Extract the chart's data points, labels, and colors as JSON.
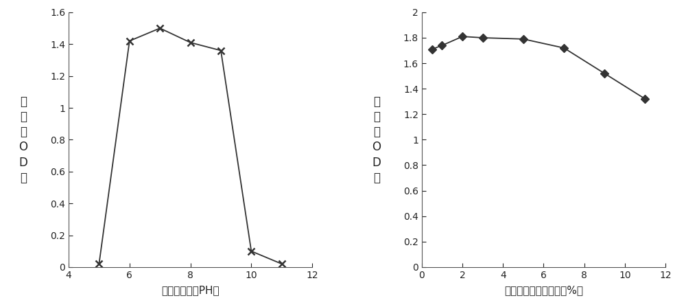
{
  "chart1": {
    "x": [
      5,
      6,
      7,
      8,
      9,
      10,
      11
    ],
    "y": [
      0.02,
      1.42,
      1.5,
      1.41,
      1.36,
      0.1,
      0.02
    ],
    "xlim": [
      4,
      12
    ],
    "ylim": [
      0,
      1.6
    ],
    "xticks": [
      4,
      6,
      8,
      10,
      12
    ],
    "yticks": [
      0,
      0.2,
      0.4,
      0.6,
      0.8,
      1.0,
      1.2,
      1.4,
      1.6
    ],
    "xlabel": "培养液的初始PH值",
    "ylabel_chars": [
      "菌",
      "液",
      "的",
      "O",
      "D",
      "值"
    ],
    "color": "#333333",
    "marker": "x",
    "markersize": 7,
    "linewidth": 1.3,
    "markeredgewidth": 1.8
  },
  "chart2": {
    "x": [
      0.5,
      1,
      2,
      3,
      5,
      7,
      9,
      11
    ],
    "y": [
      1.71,
      1.74,
      1.81,
      1.8,
      1.79,
      1.72,
      1.52,
      1.32
    ],
    "xlim": [
      0,
      12
    ],
    "ylim": [
      0,
      2.0
    ],
    "xticks": [
      0,
      2,
      4,
      6,
      8,
      10,
      12
    ],
    "yticks": [
      0,
      0.2,
      0.4,
      0.6,
      0.8,
      1.0,
      1.2,
      1.4,
      1.6,
      1.8,
      2.0
    ],
    "xlabel": "培养液的初始盐度值（%）",
    "ylabel_chars": [
      "菌",
      "液",
      "的",
      "O",
      "D",
      "值"
    ],
    "color": "#333333",
    "marker": "D",
    "markersize": 6,
    "linewidth": 1.3
  },
  "bg_color": "#ffffff",
  "font_size_label": 11,
  "font_size_tick": 10,
  "font_size_ylabel": 12
}
